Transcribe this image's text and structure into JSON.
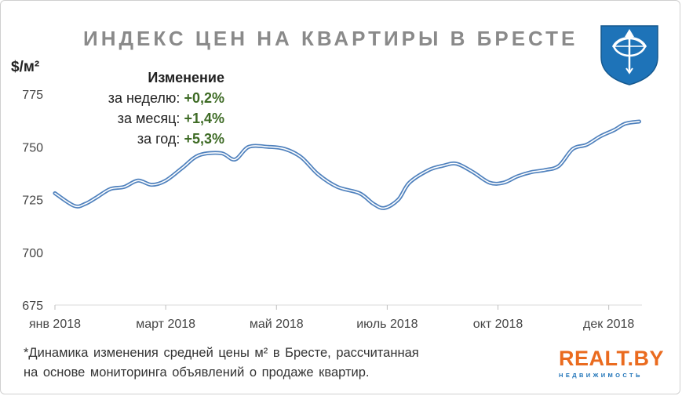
{
  "title": "ИНДЕКС ЦЕН НА КВАРТИРЫ В БРЕСТЕ",
  "unit_label": "$/м²",
  "change_box": {
    "header": "Изменение",
    "rows": [
      {
        "label": "за неделю:",
        "value": "+0,2%"
      },
      {
        "label": "за месяц:",
        "value": "+1,4%"
      },
      {
        "label": "за год:",
        "value": "+5,3%"
      }
    ]
  },
  "footnote": {
    "line1": "*Динамика изменения средней цены м² в Бресте, рассчитанная",
    "line2": "на основе мониторинга объявлений о продаже квартир."
  },
  "logo": {
    "word": "REALT.BY",
    "sub": "НЕДВИЖИМОСТЬ"
  },
  "colors": {
    "line": "#4f81bd",
    "title": "#8a8a8a",
    "positive": "#3e6b25",
    "logo_orange": "#ea6b1f",
    "logo_blue": "#1e73b8",
    "coat_blue": "#1e73b8"
  },
  "icons": {
    "coat_of_arms": "brest-coat-of-arms-icon"
  },
  "chart_data": {
    "type": "line",
    "ylim": [
      675,
      775
    ],
    "yticks": [
      675,
      700,
      725,
      750,
      775
    ],
    "xticks": [
      {
        "label": "янв 2018",
        "x": 0
      },
      {
        "label": "март 2018",
        "x": 2
      },
      {
        "label": "май 2018",
        "x": 4
      },
      {
        "label": "июль 2018",
        "x": 6
      },
      {
        "label": "окт 2018",
        "x": 8
      },
      {
        "label": "дек 2018",
        "x": 10
      }
    ],
    "grid": false,
    "series": [
      {
        "values": [
          [
            0.0,
            728
          ],
          [
            0.35,
            722
          ],
          [
            0.55,
            723
          ],
          [
            0.75,
            726
          ],
          [
            1.0,
            730
          ],
          [
            1.25,
            731
          ],
          [
            1.5,
            734
          ],
          [
            1.75,
            732
          ],
          [
            2.0,
            734
          ],
          [
            2.3,
            740
          ],
          [
            2.6,
            746
          ],
          [
            3.0,
            747
          ],
          [
            3.25,
            744
          ],
          [
            3.5,
            750
          ],
          [
            3.85,
            750
          ],
          [
            4.15,
            749
          ],
          [
            4.45,
            745
          ],
          [
            4.75,
            737
          ],
          [
            5.1,
            731
          ],
          [
            5.5,
            728
          ],
          [
            5.75,
            723
          ],
          [
            5.95,
            721
          ],
          [
            6.2,
            725
          ],
          [
            6.4,
            733
          ],
          [
            6.75,
            739
          ],
          [
            7.0,
            741
          ],
          [
            7.25,
            742
          ],
          [
            7.55,
            738
          ],
          [
            7.85,
            733
          ],
          [
            8.1,
            733
          ],
          [
            8.35,
            736
          ],
          [
            8.6,
            738
          ],
          [
            8.85,
            739
          ],
          [
            9.1,
            741
          ],
          [
            9.35,
            749
          ],
          [
            9.6,
            751
          ],
          [
            9.85,
            755
          ],
          [
            10.1,
            758
          ],
          [
            10.3,
            761
          ],
          [
            10.55,
            762
          ]
        ]
      }
    ]
  }
}
